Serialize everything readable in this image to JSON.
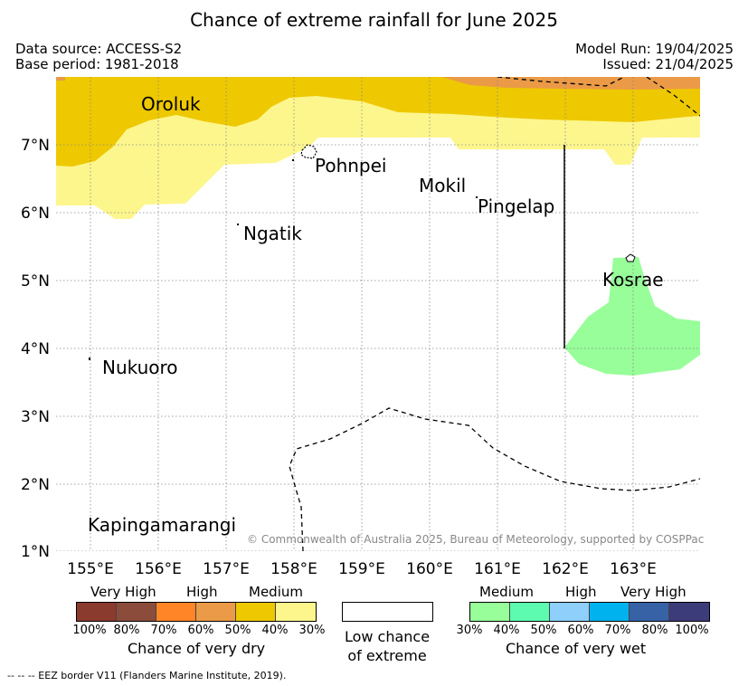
{
  "title": "Chance of extreme rainfall for June 2025",
  "header": {
    "data_source": "Data source: ACCESS-S2",
    "base_period": "Base period: 1981-2018",
    "model_run": "Model Run: 19/04/2025",
    "issued": "Issued: 21/04/2025"
  },
  "map": {
    "lon_labels": [
      "155°E",
      "156°E",
      "157°E",
      "158°E",
      "159°E",
      "160°E",
      "161°E",
      "162°E",
      "163°E"
    ],
    "lat_labels": [
      "7°N",
      "6°N",
      "5°N",
      "4°N",
      "3°N",
      "2°N",
      "1°N"
    ],
    "places": [
      "Oroluk",
      "Pohnpei",
      "Mokil",
      "Pingelap",
      "Ngatik",
      "Kosrae",
      "Nukuoro",
      "Kapingamarangi"
    ],
    "copyright": "© Commonwealth of Australia 2025, Bureau of Meteorology, supported by COSPPac"
  },
  "legend": {
    "dry": {
      "categories": [
        "Very High",
        "High",
        "Medium"
      ],
      "colors": [
        "#8b3a2e",
        "#8b4c3c",
        "#ff8526",
        "#eb9a47",
        "#eec800",
        "#fdf68d"
      ],
      "ticks": [
        "100%",
        "80%",
        "70%",
        "60%",
        "50%",
        "40%",
        "30%"
      ],
      "caption": "Chance of very dry"
    },
    "neutral": {
      "caption_line1": "Low chance",
      "caption_line2": "of extreme"
    },
    "wet": {
      "categories": [
        "Medium",
        "High",
        "Very High"
      ],
      "colors": [
        "#97fe99",
        "#5cfbaf",
        "#8ecffb",
        "#00b2ee",
        "#3762a6",
        "#3c3c7a"
      ],
      "ticks": [
        "30%",
        "40%",
        "50%",
        "60%",
        "70%",
        "80%",
        "100%"
      ],
      "caption": "Chance of very wet"
    }
  },
  "footer": "--  --  -- EEZ border V11 (Flanders Marine Institute, 2019).",
  "colors": {
    "medium_dry": "#eec800",
    "light_dry": "#fdf68d",
    "high_dry": "#eb9a47",
    "medium_wet": "#97fe99"
  }
}
